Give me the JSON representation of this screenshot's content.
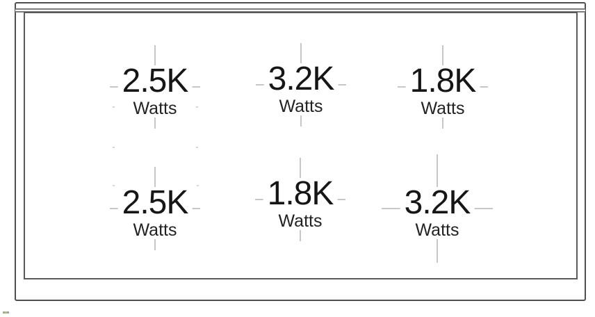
{
  "diagram": {
    "type": "cooktop-burner-wattage-layout",
    "rows": 2,
    "columns": 3
  },
  "burners": [
    {
      "id": "top-left",
      "power": "2.5K",
      "unit": "Watts"
    },
    {
      "id": "top-center",
      "power": "3.2K",
      "unit": "Watts"
    },
    {
      "id": "top-right",
      "power": "1.8K",
      "unit": "Watts"
    },
    {
      "id": "bottom-left",
      "power": "2.5K",
      "unit": "Watts"
    },
    {
      "id": "bottom-center",
      "power": "1.8K",
      "unit": "Watts"
    },
    {
      "id": "bottom-right",
      "power": "3.2K",
      "unit": "Watts"
    }
  ],
  "colors": {
    "outer_frame": "#4f4f4f",
    "inner_frame": "#595959",
    "back_edge_band": "#7d7d7d",
    "crosshair": "#c7c7c7",
    "text": "#161616",
    "background": "#ffffff"
  }
}
